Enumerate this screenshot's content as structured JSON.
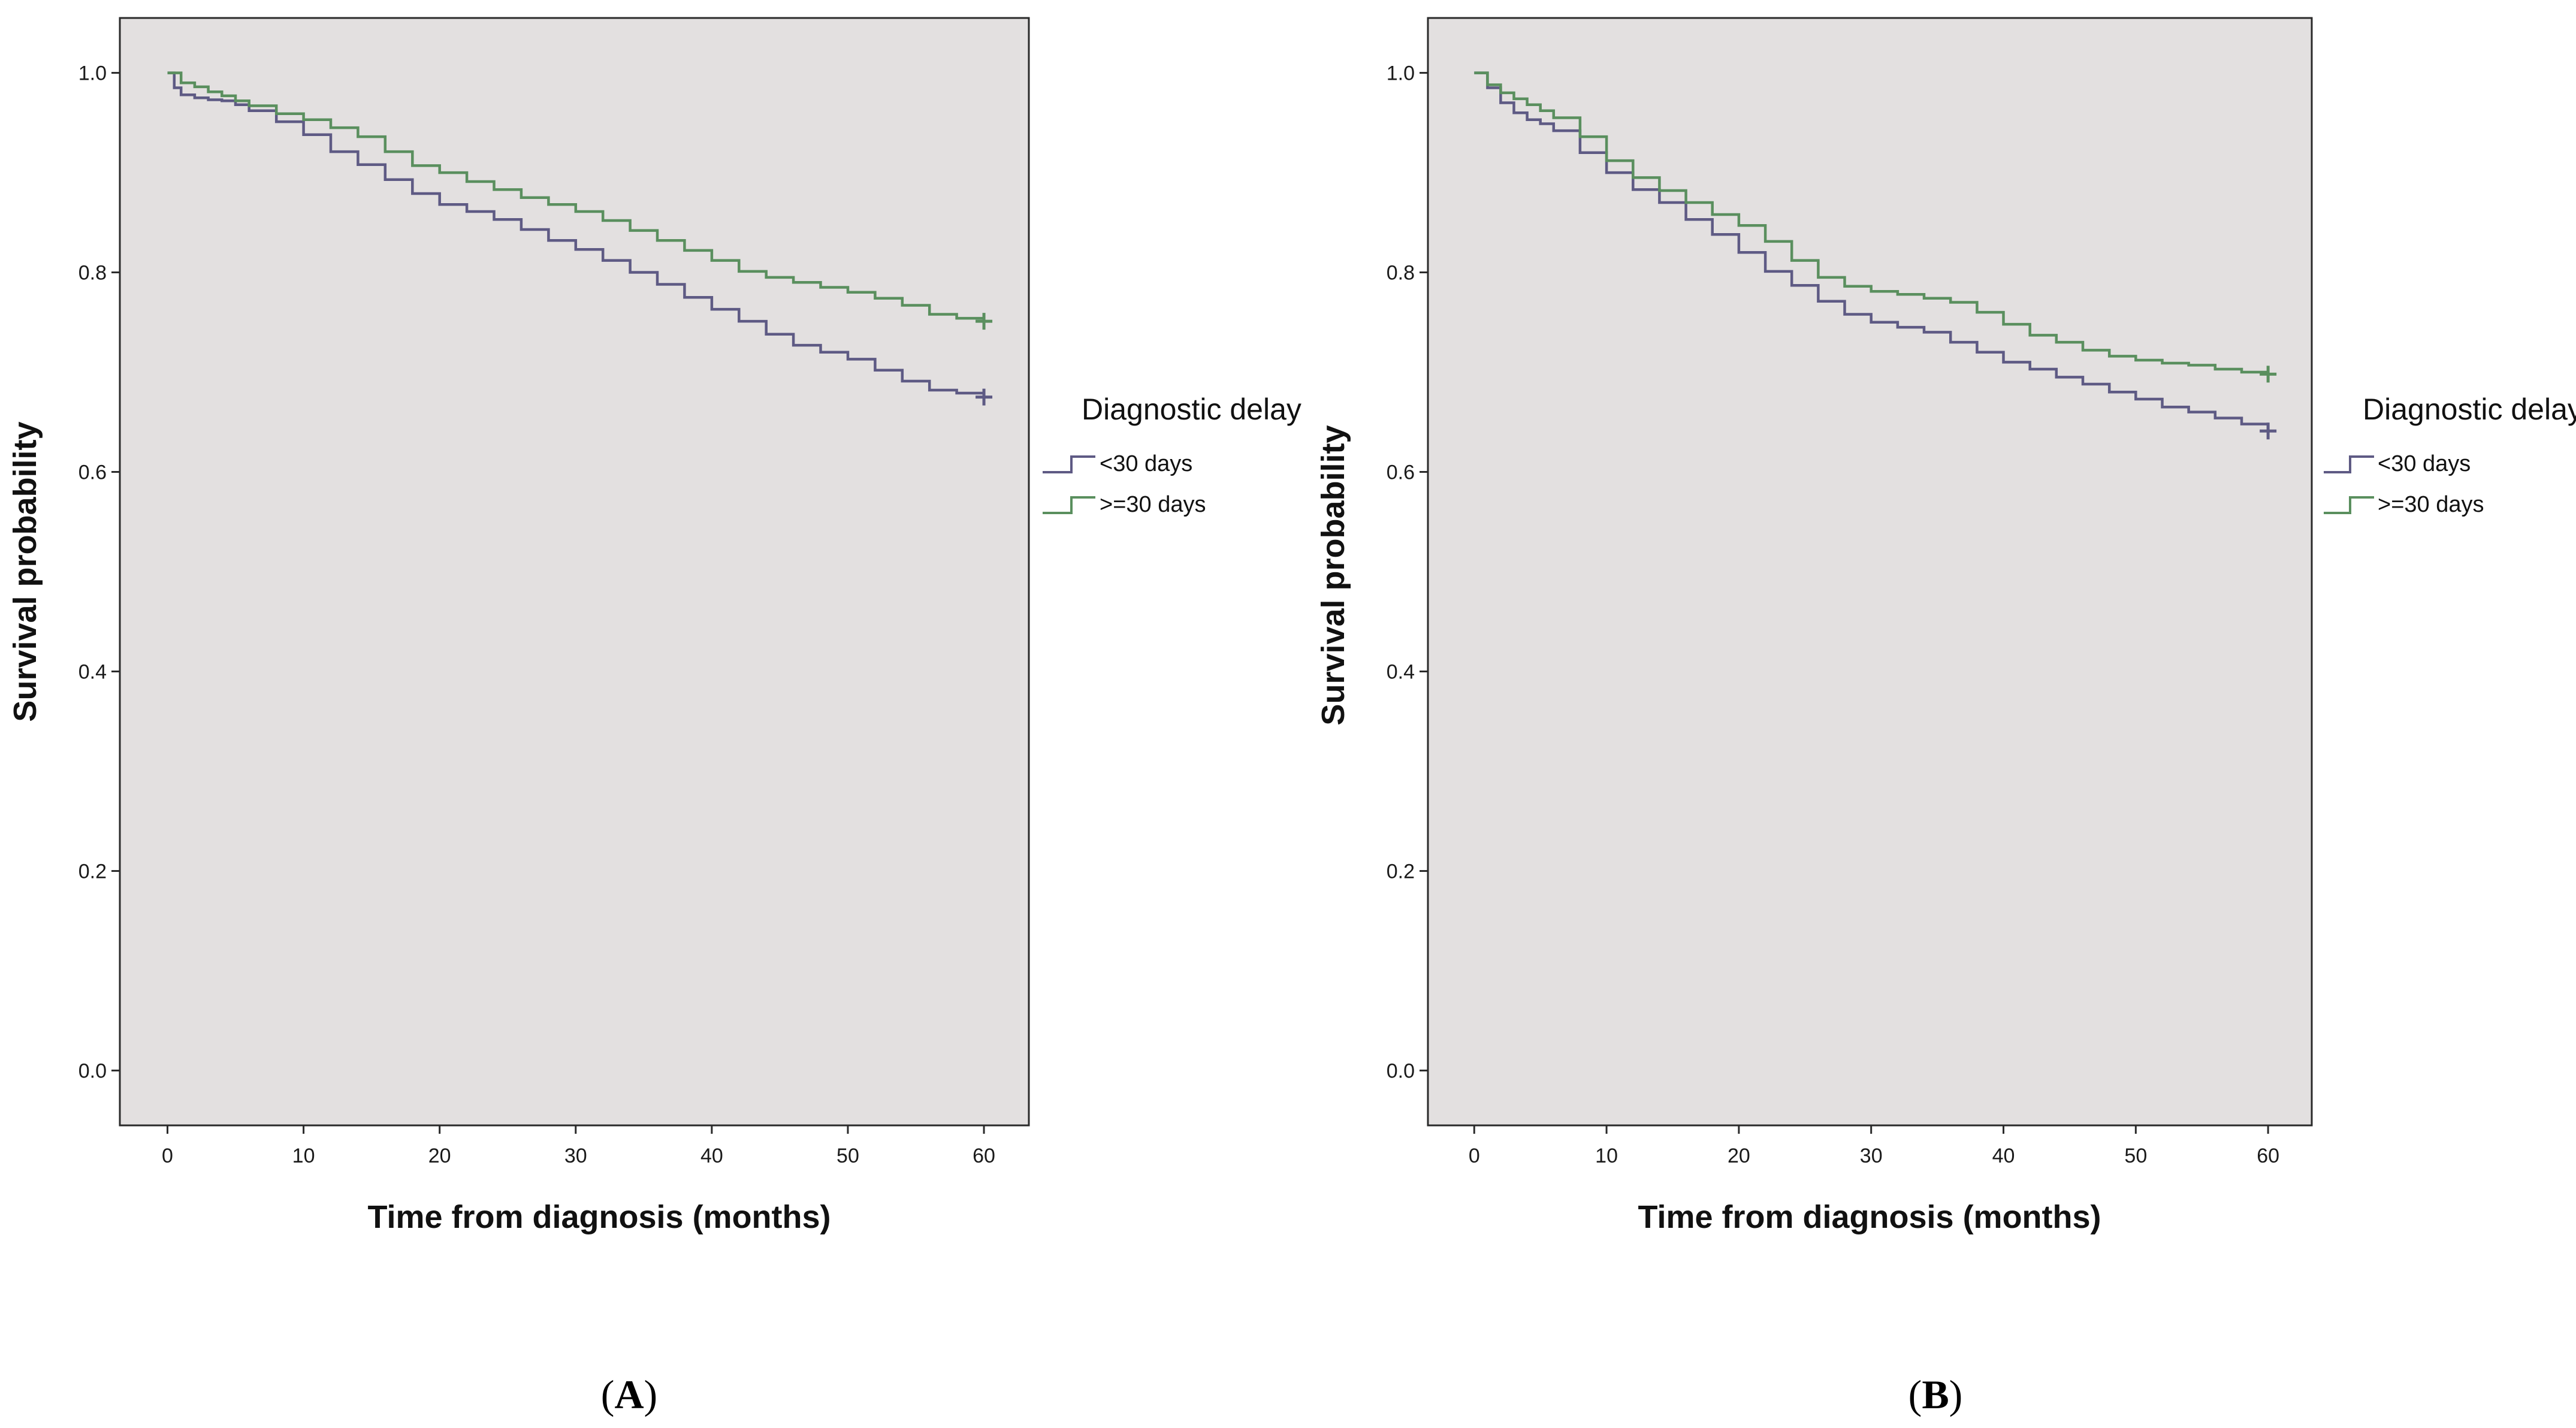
{
  "chart_data": [
    {
      "type": "line",
      "panel_label": "A",
      "title": "",
      "xlabel": "Time from diagnosis (months)",
      "ylabel": "Survival probability",
      "xlim": [
        -3.5,
        63.3
      ],
      "ylim": [
        -0.055,
        1.055
      ],
      "xticks": [
        "0",
        "10",
        "20",
        "30",
        "40",
        "50",
        "60"
      ],
      "yticks": [
        "0.0",
        "0.2",
        "0.4",
        "0.6",
        "0.8",
        "1.0"
      ],
      "grid": false,
      "legend_title": "Diagnostic delay",
      "legend_position": "right",
      "series": [
        {
          "name": "<30 days",
          "color": "#5e5a84",
          "x": [
            0,
            0.5,
            1,
            2,
            3,
            4,
            5,
            6,
            8,
            10,
            12,
            14,
            16,
            18,
            20,
            22,
            24,
            26,
            28,
            30,
            32,
            34,
            36,
            38,
            40,
            42,
            44,
            46,
            48,
            50,
            52,
            54,
            56,
            58,
            60
          ],
          "y": [
            1.0,
            0.985,
            0.978,
            0.975,
            0.973,
            0.972,
            0.968,
            0.962,
            0.951,
            0.938,
            0.921,
            0.908,
            0.893,
            0.879,
            0.868,
            0.861,
            0.853,
            0.843,
            0.832,
            0.823,
            0.812,
            0.8,
            0.788,
            0.775,
            0.763,
            0.751,
            0.738,
            0.727,
            0.72,
            0.713,
            0.702,
            0.691,
            0.682,
            0.679,
            0.675
          ]
        },
        {
          "name": ">=30 days",
          "color": "#5a8f5e",
          "x": [
            0,
            1,
            2,
            3,
            4,
            5,
            6,
            8,
            10,
            12,
            14,
            16,
            18,
            20,
            22,
            24,
            26,
            28,
            30,
            32,
            34,
            36,
            38,
            40,
            42,
            44,
            46,
            48,
            50,
            52,
            54,
            56,
            58,
            60
          ],
          "y": [
            1.0,
            0.99,
            0.986,
            0.981,
            0.977,
            0.972,
            0.967,
            0.959,
            0.953,
            0.945,
            0.936,
            0.921,
            0.907,
            0.9,
            0.891,
            0.883,
            0.875,
            0.868,
            0.861,
            0.852,
            0.842,
            0.832,
            0.822,
            0.812,
            0.801,
            0.795,
            0.79,
            0.785,
            0.78,
            0.774,
            0.767,
            0.758,
            0.754,
            0.751
          ]
        }
      ]
    },
    {
      "type": "line",
      "panel_label": "B",
      "title": "",
      "xlabel": "Time from diagnosis (months)",
      "ylabel": "Survival probability",
      "xlim": [
        -3.5,
        63.3
      ],
      "ylim": [
        -0.055,
        1.055
      ],
      "xticks": [
        "0",
        "10",
        "20",
        "30",
        "40",
        "50",
        "60"
      ],
      "yticks": [
        "0.0",
        "0.2",
        "0.4",
        "0.6",
        "0.8",
        "1.0"
      ],
      "grid": false,
      "legend_title": "Diagnostic delay",
      "legend_position": "right",
      "series": [
        {
          "name": "<30 days",
          "color": "#5e5a84",
          "x": [
            0,
            1,
            2,
            3,
            4,
            5,
            6,
            8,
            10,
            12,
            14,
            16,
            18,
            20,
            22,
            24,
            26,
            28,
            30,
            32,
            34,
            36,
            38,
            40,
            42,
            44,
            46,
            48,
            50,
            52,
            54,
            56,
            58,
            60
          ],
          "y": [
            1.0,
            0.985,
            0.97,
            0.96,
            0.953,
            0.949,
            0.942,
            0.92,
            0.9,
            0.883,
            0.87,
            0.853,
            0.838,
            0.82,
            0.801,
            0.787,
            0.771,
            0.758,
            0.75,
            0.745,
            0.74,
            0.73,
            0.72,
            0.71,
            0.703,
            0.695,
            0.688,
            0.68,
            0.673,
            0.665,
            0.66,
            0.654,
            0.648,
            0.641
          ]
        },
        {
          "name": ">=30 days",
          "color": "#5a8f5e",
          "x": [
            0,
            1,
            2,
            3,
            4,
            5,
            6,
            8,
            10,
            12,
            14,
            16,
            18,
            20,
            22,
            24,
            26,
            28,
            30,
            32,
            34,
            36,
            38,
            40,
            42,
            44,
            46,
            48,
            50,
            52,
            54,
            56,
            58,
            60
          ],
          "y": [
            1.0,
            0.988,
            0.98,
            0.974,
            0.968,
            0.962,
            0.955,
            0.936,
            0.912,
            0.895,
            0.882,
            0.87,
            0.858,
            0.847,
            0.831,
            0.812,
            0.795,
            0.786,
            0.781,
            0.778,
            0.774,
            0.77,
            0.76,
            0.748,
            0.737,
            0.73,
            0.722,
            0.716,
            0.712,
            0.709,
            0.707,
            0.703,
            0.7,
            0.698
          ]
        }
      ]
    }
  ]
}
